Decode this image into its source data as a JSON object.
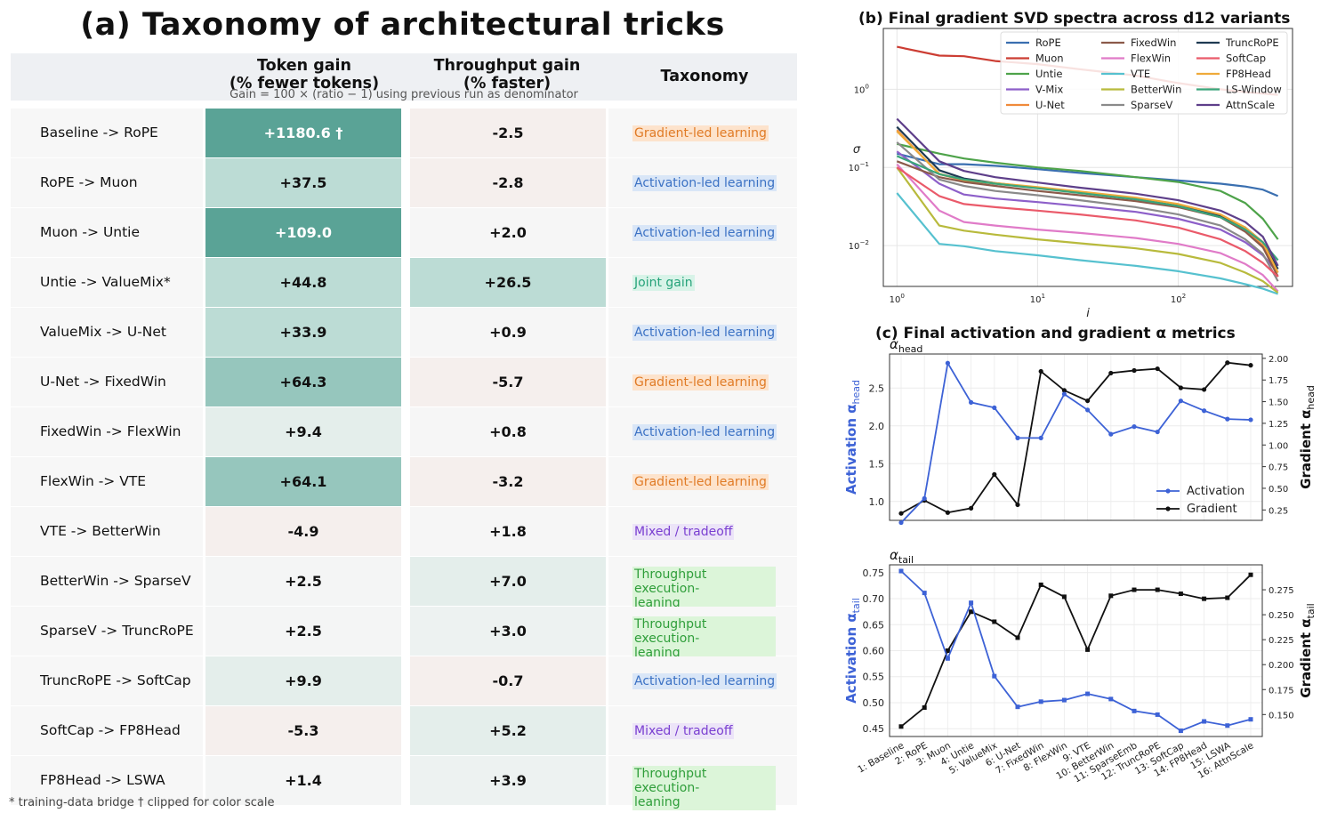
{
  "panel_a": {
    "title": "(a) Taxonomy of architectural tricks",
    "headers": {
      "token_line1": "Token gain",
      "token_line2": "(% fewer tokens)",
      "thr_line1": "Throughput gain",
      "thr_line2": "(% faster)",
      "taxonomy": "Taxonomy"
    },
    "subnote": "Gain = 100 × (ratio − 1) using previous run as denominator",
    "footnote": "* training-data bridge    † clipped for color scale",
    "rows": [
      {
        "label": "Baseline -> RoPE",
        "token": "+1180.6 †",
        "thr": "-2.5",
        "tax": "Gradient-led learning"
      },
      {
        "label": "RoPE -> Muon",
        "token": "+37.5",
        "thr": "-2.8",
        "tax": "Activation-led learning"
      },
      {
        "label": "Muon -> Untie",
        "token": "+109.0",
        "thr": "+2.0",
        "tax": "Activation-led learning"
      },
      {
        "label": "Untie -> ValueMix*",
        "token": "+44.8",
        "thr": "+26.5",
        "tax": "Joint gain"
      },
      {
        "label": "ValueMix -> U-Net",
        "token": "+33.9",
        "thr": "+0.9",
        "tax": "Activation-led learning"
      },
      {
        "label": "U-Net -> FixedWin",
        "token": "+64.3",
        "thr": "-5.7",
        "tax": "Gradient-led learning"
      },
      {
        "label": "FixedWin -> FlexWin",
        "token": "+9.4",
        "thr": "+0.8",
        "tax": "Activation-led learning"
      },
      {
        "label": "FlexWin -> VTE",
        "token": "+64.1",
        "thr": "-3.2",
        "tax": "Gradient-led learning"
      },
      {
        "label": "VTE -> BetterWin",
        "token": "-4.9",
        "thr": "+1.8",
        "tax": "Mixed / tradeoff"
      },
      {
        "label": "BetterWin -> SparseV",
        "token": "+2.5",
        "thr": "+7.0",
        "tax": "Throughput execution-\nleaning"
      },
      {
        "label": "SparseV -> TruncRoPE",
        "token": "+2.5",
        "thr": "+3.0",
        "tax": "Throughput execution-\nleaning"
      },
      {
        "label": "TruncRoPE -> SoftCap",
        "token": "+9.9",
        "thr": "-0.7",
        "tax": "Activation-led learning"
      },
      {
        "label": "SoftCap -> FP8Head",
        "token": "-5.3",
        "thr": "+5.2",
        "tax": "Mixed / tradeoff"
      },
      {
        "label": "FP8Head -> LSWA",
        "token": "+1.4",
        "thr": "+3.9",
        "tax": "Throughput execution-\nleaning"
      }
    ],
    "colors": {
      "teal_dark": "#5aa396",
      "teal_mid": "#96c6bd",
      "teal_light": "#bcdcd5",
      "teal_faint": "#e4eeeb",
      "pink_faint": "#f5efed",
      "grad_tag_bg": "#fde3cc",
      "grad_tag_fg": "#e07b26",
      "act_tag_bg": "#d9e6f7",
      "act_tag_fg": "#3c72c4",
      "joint_tag_bg": "#d8f3e8",
      "joint_tag_fg": "#27a37a",
      "mixed_tag_bg": "#ece4f8",
      "mixed_tag_fg": "#7a3fd1",
      "thr_tag_bg": "#dcf5d9",
      "thr_tag_fg": "#2f9e3a"
    }
  },
  "chart_data": [
    {
      "type": "line",
      "title": "(b) Final gradient SVD spectra across d12 variants",
      "xlabel": "i",
      "ylabel": "σ",
      "xscale": "log",
      "yscale": "log",
      "xlim": [
        0.8,
        650
      ],
      "ylim": [
        0.003,
        6
      ],
      "x_ticks": [
        "10^0",
        "10^1",
        "10^2"
      ],
      "y_ticks": [
        "10^-2",
        "10^-1",
        "10^0"
      ],
      "legend": "top-right",
      "grid": true,
      "x": [
        1,
        2,
        3,
        5,
        10,
        20,
        50,
        100,
        200,
        300,
        400,
        512
      ],
      "series": [
        {
          "name": "RoPE",
          "color": "#3a6fb0",
          "values": [
            0.15,
            0.11,
            0.11,
            0.105,
            0.095,
            0.085,
            0.075,
            0.068,
            0.062,
            0.057,
            0.052,
            0.043
          ]
        },
        {
          "name": "Muon",
          "color": "#cc3d33",
          "values": [
            3.5,
            2.7,
            2.65,
            2.3,
            2.1,
            1.8,
            1.5,
            1.2,
            1.0,
            0.92,
            0.88,
            0.85
          ]
        },
        {
          "name": "Untie",
          "color": "#4ea34a",
          "values": [
            0.2,
            0.15,
            0.13,
            0.115,
            0.1,
            0.09,
            0.075,
            0.065,
            0.05,
            0.035,
            0.022,
            0.012
          ]
        },
        {
          "name": "V-Mix",
          "color": "#8d5fc9",
          "values": [
            0.16,
            0.062,
            0.045,
            0.04,
            0.036,
            0.032,
            0.027,
            0.022,
            0.016,
            0.011,
            0.0075,
            0.0045
          ]
        },
        {
          "name": "U-Net",
          "color": "#f08a3a",
          "values": [
            0.3,
            0.082,
            0.068,
            0.062,
            0.055,
            0.048,
            0.04,
            0.033,
            0.024,
            0.016,
            0.01,
            0.004
          ]
        },
        {
          "name": "FixedWin",
          "color": "#8b5a4a",
          "values": [
            0.12,
            0.075,
            0.065,
            0.058,
            0.05,
            0.044,
            0.037,
            0.031,
            0.023,
            0.015,
            0.0095,
            0.004
          ]
        },
        {
          "name": "FlexWin",
          "color": "#e07bc8",
          "values": [
            0.11,
            0.028,
            0.02,
            0.018,
            0.016,
            0.0145,
            0.0125,
            0.0105,
            0.008,
            0.0058,
            0.0042,
            0.0026
          ]
        },
        {
          "name": "VTE",
          "color": "#56c1cf",
          "values": [
            0.047,
            0.0105,
            0.0098,
            0.0085,
            0.0075,
            0.0065,
            0.0055,
            0.0047,
            0.0038,
            0.0032,
            0.0028,
            0.0024
          ]
        },
        {
          "name": "BetterWin",
          "color": "#b8ba3c",
          "values": [
            0.1,
            0.018,
            0.0155,
            0.0138,
            0.012,
            0.0107,
            0.0092,
            0.0078,
            0.006,
            0.0045,
            0.0035,
            0.0025
          ]
        },
        {
          "name": "SparseV",
          "color": "#8a8a8a",
          "values": [
            0.21,
            0.07,
            0.058,
            0.05,
            0.044,
            0.038,
            0.031,
            0.025,
            0.018,
            0.012,
            0.0078,
            0.0035
          ]
        },
        {
          "name": "TruncRoPE",
          "color": "#1f3a52",
          "values": [
            0.33,
            0.092,
            0.072,
            0.063,
            0.055,
            0.048,
            0.04,
            0.033,
            0.024,
            0.017,
            0.011,
            0.005
          ]
        },
        {
          "name": "SoftCap",
          "color": "#ea5a6a",
          "values": [
            0.1,
            0.043,
            0.034,
            0.031,
            0.028,
            0.025,
            0.021,
            0.017,
            0.012,
            0.0085,
            0.006,
            0.004
          ]
        },
        {
          "name": "FP8Head",
          "color": "#efaa3a",
          "values": [
            0.29,
            0.083,
            0.069,
            0.063,
            0.056,
            0.049,
            0.041,
            0.034,
            0.025,
            0.017,
            0.011,
            0.0045
          ]
        },
        {
          "name": "LS-Window",
          "color": "#3aa57a",
          "values": [
            0.14,
            0.082,
            0.07,
            0.062,
            0.054,
            0.047,
            0.039,
            0.032,
            0.023,
            0.016,
            0.011,
            0.0065
          ]
        },
        {
          "name": "AttnScale",
          "color": "#5e3f8a",
          "values": [
            0.42,
            0.12,
            0.09,
            0.075,
            0.064,
            0.055,
            0.046,
            0.038,
            0.028,
            0.02,
            0.013,
            0.0055
          ]
        }
      ]
    },
    {
      "type": "line",
      "title": "(c) Final activation and gradient α metrics",
      "subplot_label": "α_head",
      "ylabel_left": "Activation α_head",
      "ylabel_right": "Gradient α_head",
      "ylim_left": [
        0.75,
        2.95
      ],
      "ylim_right": [
        0.13,
        2.05
      ],
      "y_ticks_left": [
        "1.0",
        "1.5",
        "2.0",
        "2.5"
      ],
      "y_ticks_right": [
        "0.25",
        "0.50",
        "0.75",
        "1.00",
        "1.25",
        "1.50",
        "1.75",
        "2.00"
      ],
      "legend": "center-right",
      "grid": true,
      "series": [
        {
          "name": "Activation",
          "color": "#3d62d6",
          "values": [
            0.72,
            1.04,
            2.83,
            2.31,
            2.24,
            1.84,
            1.84,
            2.42,
            2.21,
            1.89,
            1.99,
            1.92,
            2.33,
            2.2,
            2.09,
            2.08
          ]
        },
        {
          "name": "Gradient",
          "color": "#111111",
          "values": [
            0.21,
            0.36,
            0.22,
            0.27,
            0.66,
            0.31,
            1.85,
            1.63,
            1.51,
            1.83,
            1.86,
            1.88,
            1.66,
            1.64,
            1.95,
            1.92
          ]
        }
      ]
    },
    {
      "type": "line",
      "subplot_label": "α_tail",
      "ylabel_left": "Activation α_tail",
      "ylabel_right": "Gradient α_tail",
      "ylim_left": [
        0.435,
        0.765
      ],
      "ylim_right": [
        0.128,
        0.3
      ],
      "y_ticks_left": [
        "0.45",
        "0.50",
        "0.55",
        "0.60",
        "0.65",
        "0.70",
        "0.75"
      ],
      "y_ticks_right": [
        "0.150",
        "0.175",
        "0.200",
        "0.225",
        "0.250",
        "0.275"
      ],
      "categories": [
        "1: Baseline",
        "2: RoPE",
        "3: Muon",
        "4: Untie",
        "5: ValueMix",
        "6: U-Net",
        "7: FixedWin",
        "8: FlexWin",
        "9: VTE",
        "10: BetterWin",
        "11: SparseEmb",
        "12: TruncRoPE",
        "13: SoftCap",
        "14: FP8Head",
        "15: LSWA",
        "16: AttnScale"
      ],
      "grid": true,
      "series": [
        {
          "name": "Activation",
          "color": "#3d62d6",
          "values": [
            0.753,
            0.711,
            0.585,
            0.692,
            0.551,
            0.492,
            0.502,
            0.505,
            0.517,
            0.507,
            0.484,
            0.477,
            0.446,
            0.464,
            0.456,
            0.468
          ]
        },
        {
          "name": "Gradient",
          "color": "#111111",
          "values": [
            0.138,
            0.157,
            0.214,
            0.253,
            0.243,
            0.227,
            0.28,
            0.268,
            0.215,
            0.269,
            0.275,
            0.275,
            0.271,
            0.266,
            0.267,
            0.29
          ]
        }
      ]
    }
  ]
}
